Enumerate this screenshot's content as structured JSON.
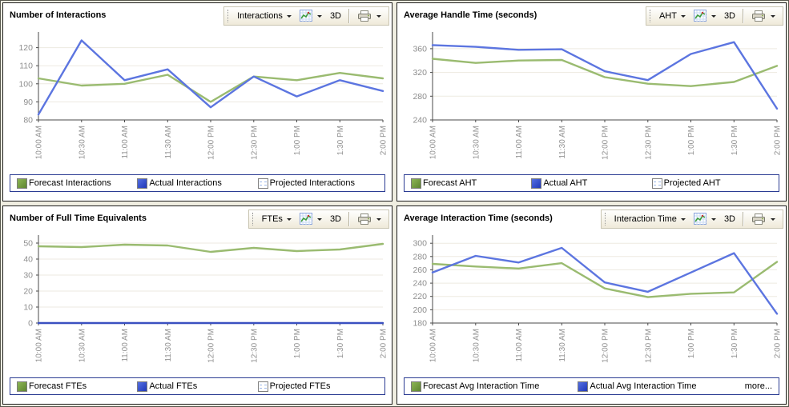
{
  "colors": {
    "forecast_line": "#9abb70",
    "actual_line": "#5c75e0",
    "legend_green": "#6f9c3c",
    "legend_blue": "#3353d0",
    "grid_line": "#edeae1",
    "axis": "#4a4a4a",
    "tick_label": "#8d8d8d",
    "legend_border": "#2b3c93"
  },
  "panels": [
    {
      "title": "Number of Interactions",
      "toolbar": {
        "dropdown_label": "Interactions",
        "mode_3d_label": "3D"
      },
      "legend": [
        {
          "label": "Forecast Interactions",
          "swatch": "green"
        },
        {
          "label": "Actual Interactions",
          "swatch": "blue"
        },
        {
          "label": "Projected Interactions",
          "swatch": "projected"
        }
      ]
    },
    {
      "title": "Average Handle Time (seconds)",
      "toolbar": {
        "dropdown_label": "AHT",
        "mode_3d_label": "3D"
      },
      "legend": [
        {
          "label": "Forecast AHT",
          "swatch": "green"
        },
        {
          "label": "Actual AHT",
          "swatch": "blue"
        },
        {
          "label": "Projected AHT",
          "swatch": "projected"
        }
      ]
    },
    {
      "title": "Number of Full Time Equivalents",
      "toolbar": {
        "dropdown_label": "FTEs",
        "mode_3d_label": "3D"
      },
      "legend": [
        {
          "label": "Forecast FTEs",
          "swatch": "green"
        },
        {
          "label": "Actual FTEs",
          "swatch": "blue"
        },
        {
          "label": "Projected FTEs",
          "swatch": "projected"
        }
      ]
    },
    {
      "title": "Average Interaction Time (seconds)",
      "toolbar": {
        "dropdown_label": "Interaction Time",
        "mode_3d_label": "3D"
      },
      "legend": [
        {
          "label": "Forecast Avg Interaction Time",
          "swatch": "green"
        },
        {
          "label": "Actual Avg Interaction Time",
          "swatch": "blue"
        }
      ],
      "more_label": "more..."
    }
  ],
  "chart_data": [
    {
      "type": "line",
      "title": "Number of Interactions",
      "categories": [
        "10:00 AM",
        "10:30 AM",
        "11:00 AM",
        "11:30 AM",
        "12:00 PM",
        "12:30 PM",
        "1:00 PM",
        "1:30 PM",
        "2:00 PM"
      ],
      "series": [
        {
          "name": "Forecast Interactions",
          "color": "#9abb70",
          "values": [
            103,
            99,
            100,
            105,
            90,
            104,
            102,
            106,
            103
          ]
        },
        {
          "name": "Actual Interactions",
          "color": "#5c75e0",
          "values": [
            83,
            124,
            102,
            108,
            87,
            104,
            93,
            102,
            96
          ]
        }
      ],
      "ylim": [
        80,
        126
      ],
      "yticks": [
        80,
        90,
        100,
        110,
        120
      ],
      "grid": true,
      "legend_position": "bottom"
    },
    {
      "type": "line",
      "title": "Average Handle Time (seconds)",
      "categories": [
        "10:00 AM",
        "10:30 AM",
        "11:00 AM",
        "11:30 AM",
        "12:00 PM",
        "12:30 PM",
        "1:00 PM",
        "1:30 PM",
        "2:00 PM"
      ],
      "series": [
        {
          "name": "Forecast AHT",
          "color": "#9abb70",
          "values": [
            343,
            336,
            340,
            341,
            312,
            301,
            297,
            304,
            331
          ]
        },
        {
          "name": "Actual AHT",
          "color": "#5c75e0",
          "values": [
            366,
            363,
            358,
            359,
            322,
            307,
            351,
            371,
            259
          ]
        }
      ],
      "ylim": [
        240,
        380
      ],
      "yticks": [
        240,
        280,
        320,
        360
      ],
      "grid": true,
      "legend_position": "bottom"
    },
    {
      "type": "line",
      "title": "Number of Full Time Equivalents",
      "categories": [
        "10:00 AM",
        "10:30 AM",
        "11:00 AM",
        "11:30 AM",
        "12:00 PM",
        "12:30 PM",
        "1:00 PM",
        "1:30 PM",
        "2:00 PM"
      ],
      "series": [
        {
          "name": "Forecast FTEs",
          "color": "#9abb70",
          "values": [
            48,
            47.5,
            49,
            48.5,
            44.5,
            47,
            45,
            46,
            49.5
          ]
        },
        {
          "name": "Actual FTEs",
          "color": "#3a50c0",
          "values": [
            0,
            0,
            0,
            0,
            0,
            0,
            0,
            0,
            0
          ]
        }
      ],
      "ylim": [
        0,
        52
      ],
      "yticks": [
        0,
        10,
        20,
        30,
        40,
        50
      ],
      "grid": true,
      "legend_position": "bottom"
    },
    {
      "type": "line",
      "title": "Average Interaction Time (seconds)",
      "categories": [
        "10:00 AM",
        "10:30 AM",
        "11:00 AM",
        "11:30 AM",
        "12:00 PM",
        "12:30 PM",
        "1:00 PM",
        "1:30 PM",
        "2:00 PM"
      ],
      "series": [
        {
          "name": "Forecast Avg Interaction Time",
          "color": "#9abb70",
          "values": [
            269,
            265,
            262,
            270,
            232,
            219,
            224,
            226,
            272
          ]
        },
        {
          "name": "Actual Avg Interaction Time",
          "color": "#5c75e0",
          "values": [
            256,
            281,
            271,
            293,
            241,
            227,
            256,
            285,
            194
          ]
        }
      ],
      "ylim": [
        180,
        305
      ],
      "yticks": [
        180,
        200,
        220,
        240,
        260,
        280,
        300
      ],
      "grid": true,
      "legend_position": "bottom"
    }
  ]
}
